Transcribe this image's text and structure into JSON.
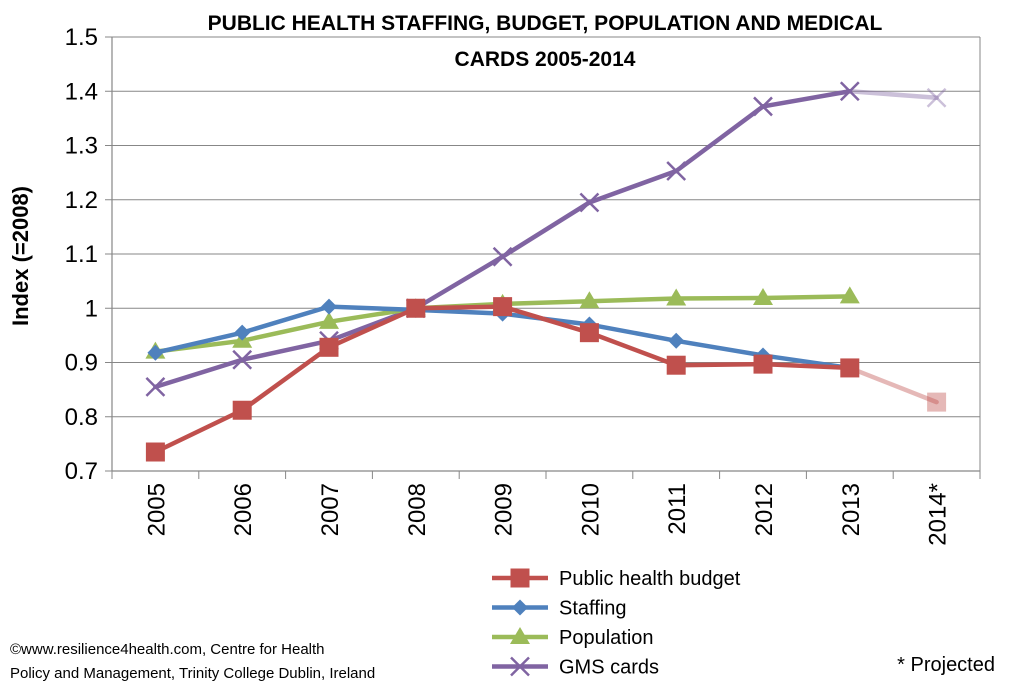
{
  "chart_data": {
    "type": "line",
    "title_lines": [
      "PUBLIC HEALTH STAFFING, BUDGET, POPULATION AND MEDICAL",
      "CARDS 2005-2014"
    ],
    "ylabel": "Index (=2008)",
    "xlabel": "",
    "categories": [
      "2005",
      "2006",
      "2007",
      "2008",
      "2009",
      "2010",
      "2011",
      "2012",
      "2013",
      "2014*"
    ],
    "ylim": [
      0.7,
      1.5
    ],
    "yticks": [
      "0.7",
      "0.8",
      "0.9",
      "1",
      "1.1",
      "1.2",
      "1.3",
      "1.4",
      "1.5"
    ],
    "ytick_values": [
      0.7,
      0.8,
      0.9,
      1.0,
      1.1,
      1.2,
      1.3,
      1.4,
      1.5
    ],
    "grid": true,
    "legend_position": "bottom",
    "series": [
      {
        "name": "Public health budget",
        "color": "#C0504D",
        "marker": "square",
        "values": [
          0.735,
          0.812,
          0.928,
          1.0,
          1.003,
          0.955,
          0.895,
          0.897,
          0.89,
          0.827
        ],
        "projected_from_index": 9
      },
      {
        "name": "Staffing",
        "color": "#4F81BD",
        "marker": "diamond",
        "values": [
          0.918,
          0.955,
          1.003,
          0.997,
          0.99,
          0.97,
          0.94,
          0.913,
          0.89,
          null
        ]
      },
      {
        "name": "Population",
        "color": "#9BBB59",
        "marker": "triangle",
        "values": [
          0.92,
          0.94,
          0.975,
          1.0,
          1.008,
          1.013,
          1.018,
          1.019,
          1.022,
          null
        ]
      },
      {
        "name": "GMS cards",
        "color": "#8064A2",
        "marker": "x",
        "values": [
          0.855,
          0.905,
          0.94,
          1.0,
          1.095,
          1.195,
          1.253,
          1.372,
          1.4,
          1.388
        ],
        "projected_from_index": 9
      }
    ]
  },
  "footer": {
    "credit_line1": "©www.resilience4health.com, Centre for Health",
    "credit_line2": "Policy and Management, Trinity College Dublin, Ireland",
    "projected_note": "* Projected"
  }
}
